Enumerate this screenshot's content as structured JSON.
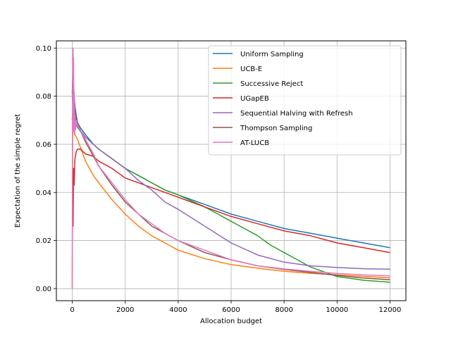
{
  "chart_data": {
    "type": "line",
    "title": "",
    "xlabel": "Allocation budget",
    "ylabel": "Expectation of the simple regret",
    "xlim": [
      -600,
      12600
    ],
    "ylim": [
      -0.005,
      0.103
    ],
    "xticks": [
      0,
      2000,
      4000,
      6000,
      8000,
      10000,
      12000
    ],
    "xtick_labels": [
      "0",
      "2000",
      "4000",
      "6000",
      "8000",
      "10000",
      "12000"
    ],
    "yticks": [
      0.0,
      0.02,
      0.04,
      0.06,
      0.08,
      0.1
    ],
    "ytick_labels": [
      "0.00",
      "0.02",
      "0.04",
      "0.06",
      "0.08",
      "0.10"
    ],
    "grid": true,
    "legend_position": "top-right",
    "series": [
      {
        "name": "Uniform Sampling",
        "color": "#1f77b4",
        "x": [
          0,
          20,
          50,
          100,
          150,
          200,
          300,
          500,
          800,
          1000,
          1500,
          2000,
          2500,
          3000,
          3500,
          4000,
          5000,
          6000,
          7000,
          8000,
          9000,
          10000,
          11000,
          12000
        ],
        "y": [
          0.081,
          0.09,
          0.083,
          0.076,
          0.072,
          0.069,
          0.067,
          0.064,
          0.06,
          0.058,
          0.054,
          0.05,
          0.047,
          0.044,
          0.041,
          0.039,
          0.035,
          0.031,
          0.028,
          0.025,
          0.023,
          0.021,
          0.019,
          0.017
        ]
      },
      {
        "name": "UCB-E",
        "color": "#ff7f0e",
        "x": [
          0,
          20,
          50,
          80,
          100,
          150,
          200,
          300,
          500,
          800,
          1000,
          1500,
          2000,
          2500,
          3000,
          3500,
          4000,
          5000,
          6000,
          7000,
          8000,
          9000,
          10000,
          11000,
          12000
        ],
        "y": [
          0.0,
          0.09,
          0.075,
          0.068,
          0.064,
          0.063,
          0.062,
          0.059,
          0.053,
          0.047,
          0.044,
          0.037,
          0.031,
          0.026,
          0.022,
          0.019,
          0.016,
          0.0125,
          0.01,
          0.0085,
          0.0072,
          0.0064,
          0.0057,
          0.0051,
          0.0045
        ]
      },
      {
        "name": "Successive Reject",
        "color": "#2ca02c",
        "x": [
          0,
          50,
          100,
          200,
          400,
          700,
          1000,
          1500,
          2000,
          2500,
          3000,
          3500,
          4000,
          5000,
          5500,
          6000,
          6500,
          7000,
          7500,
          8000,
          8500,
          9000,
          9500,
          10000,
          11000,
          12000
        ],
        "y": [
          0.08,
          0.072,
          0.069,
          0.067,
          0.064,
          0.061,
          0.058,
          0.054,
          0.05,
          0.047,
          0.044,
          0.041,
          0.039,
          0.034,
          0.031,
          0.028,
          0.025,
          0.022,
          0.018,
          0.015,
          0.012,
          0.009,
          0.007,
          0.005,
          0.0035,
          0.0027
        ]
      },
      {
        "name": "UGapEB",
        "color": "#d62728",
        "x": [
          0,
          30,
          50,
          70,
          100,
          150,
          200,
          300,
          500,
          800,
          1000,
          1500,
          2000,
          2500,
          3000,
          4000,
          5000,
          6000,
          7000,
          8000,
          9000,
          10000,
          11000,
          12000
        ],
        "y": [
          0.03,
          0.026,
          0.05,
          0.043,
          0.054,
          0.057,
          0.058,
          0.058,
          0.056,
          0.055,
          0.053,
          0.05,
          0.046,
          0.044,
          0.042,
          0.038,
          0.034,
          0.03,
          0.027,
          0.024,
          0.022,
          0.019,
          0.017,
          0.015
        ]
      },
      {
        "name": "Sequential Halving with Refresh",
        "color": "#9467bd",
        "x": [
          0,
          50,
          100,
          150,
          200,
          300,
          500,
          800,
          1000,
          1500,
          2000,
          2500,
          3000,
          3500,
          4000,
          5000,
          6000,
          7000,
          8000,
          9000,
          10000,
          11000,
          12000
        ],
        "y": [
          0.08,
          0.085,
          0.075,
          0.068,
          0.067,
          0.066,
          0.063,
          0.06,
          0.058,
          0.054,
          0.05,
          0.045,
          0.041,
          0.036,
          0.033,
          0.026,
          0.019,
          0.014,
          0.011,
          0.0095,
          0.0088,
          0.0083,
          0.0081
        ]
      },
      {
        "name": "Thompson Sampling",
        "color": "#8c564b",
        "x": [
          0,
          50,
          100,
          150,
          200,
          300,
          500,
          800,
          1000,
          1500,
          2000,
          2500,
          3000,
          3500,
          4000,
          5000,
          6000,
          7000,
          8000,
          9000,
          10000,
          11000,
          12000
        ],
        "y": [
          0.07,
          0.08,
          0.072,
          0.07,
          0.069,
          0.066,
          0.061,
          0.055,
          0.051,
          0.043,
          0.036,
          0.031,
          0.026,
          0.023,
          0.02,
          0.015,
          0.012,
          0.0095,
          0.008,
          0.0068,
          0.0055,
          0.0044,
          0.0037
        ]
      },
      {
        "name": "AT-LUCB",
        "color": "#e377c2",
        "x": [
          0,
          10,
          20,
          30,
          40,
          50,
          60,
          70,
          80,
          100,
          120,
          150,
          200,
          300,
          500,
          800,
          1000,
          1500,
          2000,
          2500,
          3000,
          3500,
          4000,
          5000,
          6000,
          7000,
          8000,
          9000,
          10000,
          11000,
          12000
        ],
        "y": [
          0.0,
          0.07,
          0.09,
          0.1,
          0.065,
          0.096,
          0.07,
          0.08,
          0.064,
          0.072,
          0.066,
          0.07,
          0.068,
          0.066,
          0.062,
          0.056,
          0.051,
          0.044,
          0.037,
          0.031,
          0.027,
          0.023,
          0.02,
          0.016,
          0.012,
          0.0095,
          0.0082,
          0.0072,
          0.0063,
          0.0057,
          0.0053
        ]
      }
    ]
  }
}
